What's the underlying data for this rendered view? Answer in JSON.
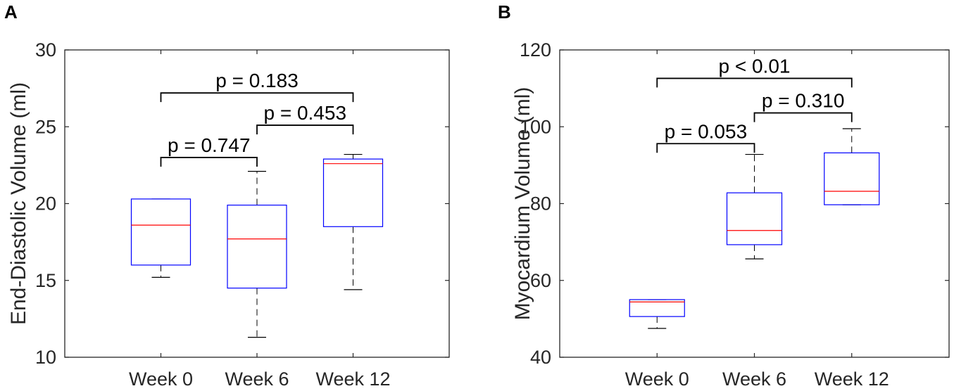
{
  "chart_data": [
    {
      "type": "box",
      "panel_label": "A",
      "categories": [
        "Week 0",
        "Week 6",
        "Week 12"
      ],
      "ylabel": "End-Diastolic Volume (ml)",
      "ylim": [
        10,
        30
      ],
      "yticks": [
        10,
        15,
        20,
        25,
        30
      ],
      "ytick_labels": [
        "10",
        "15",
        "20",
        "25",
        "30"
      ],
      "boxes": [
        {
          "whisker_low": 15.2,
          "q1": 16.0,
          "median": 18.6,
          "q3": 20.3,
          "whisker_high": 20.3
        },
        {
          "whisker_low": 11.3,
          "q1": 14.5,
          "median": 17.7,
          "q3": 19.9,
          "whisker_high": 22.1
        },
        {
          "whisker_low": 14.4,
          "q1": 18.5,
          "median": 22.6,
          "q3": 22.9,
          "whisker_high": 23.2
        }
      ],
      "comparisons": [
        {
          "from": 0,
          "to": 1,
          "level": 23.0,
          "label": "p = 0.747"
        },
        {
          "from": 1,
          "to": 2,
          "level": 25.1,
          "label": "p = 0.453"
        },
        {
          "from": 0,
          "to": 2,
          "level": 27.2,
          "label": "p = 0.183"
        }
      ]
    },
    {
      "type": "box",
      "panel_label": "B",
      "categories": [
        "Week 0",
        "Week 6",
        "Week 12"
      ],
      "ylabel": "Myocardium Volume (ml)",
      "ylim": [
        40,
        120
      ],
      "yticks": [
        40,
        60,
        80,
        100,
        120
      ],
      "ytick_labels": [
        "40",
        "60",
        "80",
        "100",
        "120"
      ],
      "boxes": [
        {
          "whisker_low": 47.5,
          "q1": 50.6,
          "median": 54.4,
          "q3": 55.0,
          "whisker_high": 55.0
        },
        {
          "whisker_low": 65.6,
          "q1": 69.3,
          "median": 73.0,
          "q3": 82.8,
          "whisker_high": 92.8
        },
        {
          "whisker_low": 79.7,
          "q1": 79.7,
          "median": 83.2,
          "q3": 93.2,
          "whisker_high": 99.5
        }
      ],
      "comparisons": [
        {
          "from": 0,
          "to": 1,
          "level": 95.6,
          "label": "p = 0.053"
        },
        {
          "from": 1,
          "to": 2,
          "level": 103.6,
          "label": "p = 0.310"
        },
        {
          "from": 0,
          "to": 2,
          "level": 112.6,
          "label": "p < 0.01"
        }
      ]
    }
  ],
  "colors": {
    "box": "#0000ff",
    "median": "#ff0000",
    "whisker": "#000000",
    "axis": "#262626",
    "bracket": "#000000"
  }
}
